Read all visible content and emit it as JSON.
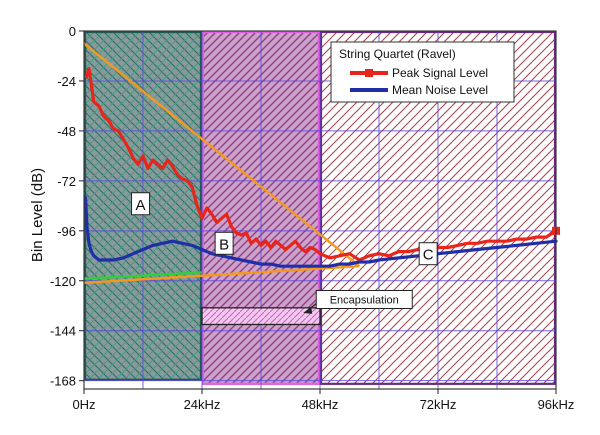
{
  "chart_data": {
    "type": "line",
    "title": "",
    "xlabel": "",
    "ylabel": "Bin Level (dB)",
    "xlim": [
      0,
      96
    ],
    "ylim": [
      -172,
      0
    ],
    "x_unit": "kHz",
    "x_ticks": [
      {
        "value": 0,
        "label": "0Hz"
      },
      {
        "value": 24,
        "label": "24kHz"
      },
      {
        "value": 48,
        "label": "48kHz"
      },
      {
        "value": 72,
        "label": "72kHz"
      },
      {
        "value": 96,
        "label": "96kHz"
      }
    ],
    "y_ticks": [
      {
        "value": 0,
        "label": "0"
      },
      {
        "value": -24,
        "label": "-24"
      },
      {
        "value": -48,
        "label": "-48"
      },
      {
        "value": -72,
        "label": "-72"
      },
      {
        "value": -96,
        "label": "-96"
      },
      {
        "value": -120,
        "label": "-120"
      },
      {
        "value": -144,
        "label": "-144"
      },
      {
        "value": -168,
        "label": "-168"
      }
    ],
    "grid": true,
    "legend": {
      "title": "String Quartet (Ravel)",
      "placement": "top-right"
    },
    "series": [
      {
        "name": "Peak Signal Level",
        "color": "#e8251a",
        "x": [
          0.5,
          1,
          1.5,
          2,
          3,
          4,
          5,
          6,
          7,
          8,
          9,
          10,
          11,
          12,
          13,
          14,
          15,
          16,
          17,
          18,
          19,
          20,
          21,
          22,
          23,
          24,
          25,
          26,
          27,
          28,
          29,
          30,
          31,
          32,
          33,
          34,
          35,
          36,
          37,
          38,
          39,
          40,
          41,
          42,
          43,
          44,
          45,
          46,
          47,
          48,
          50,
          52,
          54,
          56,
          58,
          60,
          62,
          64,
          66,
          68,
          70,
          72,
          74,
          76,
          78,
          80,
          82,
          84,
          86,
          88,
          90,
          92,
          94,
          96
        ],
        "y": [
          -22,
          -18,
          -26,
          -34,
          -36,
          -41,
          -43,
          -47,
          -48,
          -52,
          -56,
          -61,
          -64,
          -60,
          -66,
          -62,
          -64,
          -66,
          -62,
          -65,
          -69,
          -71,
          -72,
          -75,
          -84,
          -90,
          -85,
          -88,
          -92,
          -90,
          -88,
          -94,
          -97,
          -98,
          -97,
          -102,
          -100,
          -103,
          -101,
          -104,
          -101,
          -103,
          -105,
          -103,
          -101,
          -104,
          -106,
          -104,
          -105,
          -107,
          -109,
          -108,
          -107,
          -110,
          -108,
          -107,
          -108,
          -106,
          -106,
          -105,
          -105,
          -104,
          -104,
          -103,
          -102,
          -102,
          -101,
          -101,
          -101,
          -100,
          -100,
          -99,
          -99,
          -96
        ]
      },
      {
        "name": "Mean Noise Level",
        "color": "#1f2fa8",
        "x": [
          0.3,
          0.6,
          1,
          1.5,
          2,
          3,
          4,
          6,
          8,
          10,
          12,
          14,
          16,
          18,
          20,
          22,
          24,
          26,
          28,
          30,
          32,
          34,
          36,
          38,
          40,
          42,
          44,
          46,
          48,
          50,
          52,
          54,
          56,
          58,
          60,
          64,
          68,
          72,
          76,
          80,
          84,
          88,
          92,
          96
        ],
        "y": [
          -80,
          -94,
          -102,
          -106,
          -108,
          -110,
          -110,
          -110,
          -109,
          -107,
          -105,
          -103,
          -102,
          -101,
          -102,
          -103,
          -105,
          -107,
          -108,
          -109,
          -110,
          -111,
          -112,
          -112,
          -113,
          -113,
          -113,
          -113,
          -113,
          -113,
          -112,
          -112,
          -111,
          -111,
          -110,
          -109,
          -108,
          -107,
          -106,
          -105,
          -104,
          -103,
          -102,
          -101
        ]
      }
    ],
    "overlay_lines": [
      {
        "role": "upper-bound",
        "color": "#f39a1e",
        "x": [
          0,
          56
        ],
        "y": [
          -6,
          -113
        ]
      },
      {
        "role": "lower-bound",
        "color": "#f39a1e",
        "x": [
          0,
          56
        ],
        "y": [
          -121,
          -113
        ]
      },
      {
        "role": "green-level",
        "color": "#2fd13a",
        "x": [
          0,
          24
        ],
        "y": [
          -119,
          -116
        ]
      }
    ],
    "regions": [
      {
        "label": "A",
        "x_range": [
          0,
          24
        ],
        "y_range": [
          -168,
          0
        ],
        "pattern": "crosshatch",
        "color": "#2f8f6a",
        "label_at": [
          11.5,
          -83
        ]
      },
      {
        "label": "B",
        "x_range": [
          24,
          48
        ],
        "y_range": [
          -170,
          0
        ],
        "pattern": "diagonal",
        "color": "#b03a98",
        "label_at": [
          28.5,
          -102
        ]
      },
      {
        "label": "C",
        "x_range": [
          48,
          96
        ],
        "y_range": [
          -170,
          0
        ],
        "pattern": "diagonal",
        "color": "#9a2a35",
        "label_at": [
          70,
          -107
        ]
      }
    ],
    "annotations": [
      {
        "text": "Encapsulation",
        "label_at": [
          57,
          -129
        ],
        "arrow_to": [
          45,
          -133
        ],
        "box_x": [
          24,
          48
        ],
        "box_y": [
          -133,
          -141
        ]
      }
    ]
  },
  "colors": {
    "grid": "#5b49e0",
    "frame": "#3a3a3a",
    "region_a_border": "#1e5a50",
    "region_b_border": "#e060e0",
    "region_c_border": "#6a2a80"
  }
}
